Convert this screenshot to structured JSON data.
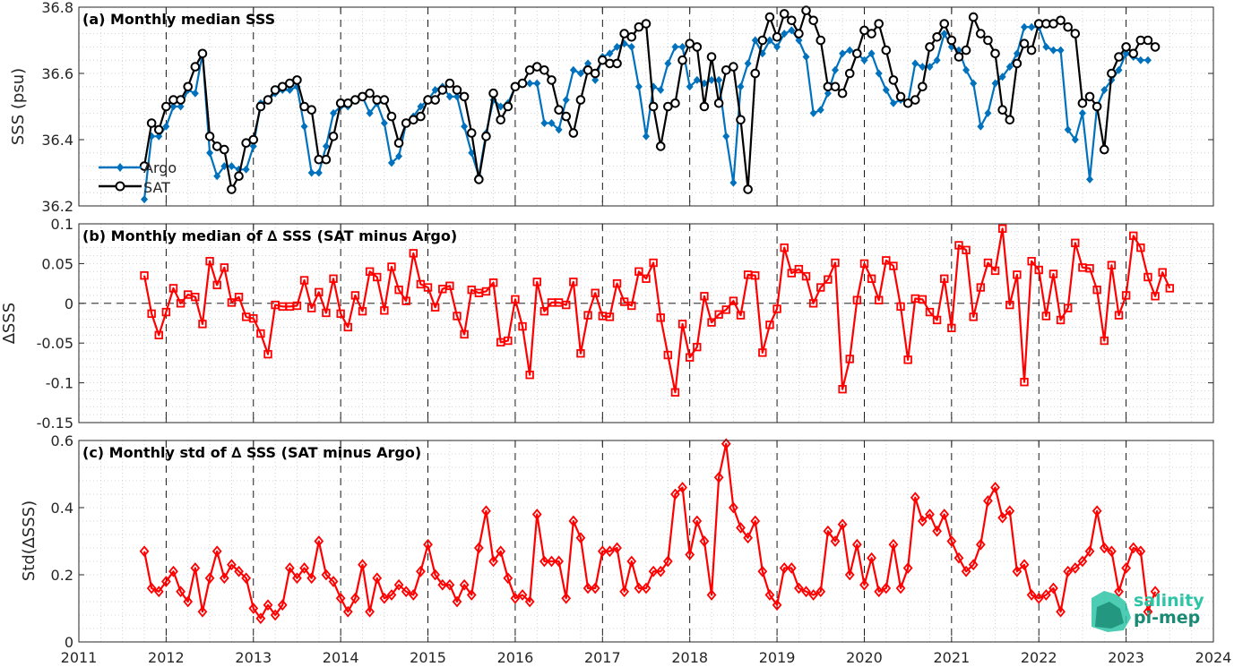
{
  "colors": {
    "argo": "#0072BD",
    "sat": "#000000",
    "delta": "#FF0000",
    "logo_dark": "#1a8a74",
    "logo_light": "#2ec4a6"
  },
  "logo": {
    "line1": "salinity",
    "line2": "pi-mep"
  },
  "chart_data": [
    {
      "type": "line",
      "title": "(a) Monthly median SSS",
      "xlabel": "",
      "ylabel": "SSS (psu)",
      "xlim": [
        2011,
        2024
      ],
      "ylim": [
        36.2,
        36.8
      ],
      "yticks": [
        "36.2",
        "36.4",
        "36.6",
        "36.8"
      ],
      "xticks": [
        "2011",
        "2012",
        "2013",
        "2014",
        "2015",
        "2016",
        "2017",
        "2018",
        "2019",
        "2020",
        "2021",
        "2022",
        "2023",
        "2024"
      ],
      "grid": "minor dotted, yearly dashed",
      "legend_position": "bottom-left",
      "x_start": 2011.75,
      "x_step": 0.0833333,
      "series": [
        {
          "name": "Argo",
          "marker": "diamond",
          "values": [
            36.22,
            36.41,
            36.41,
            36.44,
            36.5,
            36.5,
            36.55,
            36.54,
            36.66,
            36.36,
            36.29,
            36.32,
            36.32,
            36.31,
            36.31,
            36.38,
            36.51,
            36.52,
            36.54,
            36.55,
            36.55,
            36.56,
            36.44,
            36.3,
            36.3,
            36.38,
            36.48,
            36.5,
            36.5,
            36.52,
            36.53,
            36.48,
            36.51,
            36.45,
            36.33,
            36.35,
            36.45,
            36.47,
            36.5,
            36.52,
            36.55,
            36.56,
            36.53,
            36.53,
            36.44,
            36.36,
            36.29,
            36.42,
            36.52,
            36.5,
            36.51,
            36.56,
            36.57,
            36.57,
            36.57,
            36.45,
            36.45,
            36.43,
            36.52,
            36.61,
            36.6,
            36.63,
            36.58,
            36.65,
            36.66,
            36.68,
            36.69,
            36.68,
            36.56,
            36.41,
            36.56,
            36.55,
            36.63,
            36.68,
            36.68,
            36.56,
            36.58,
            36.57,
            36.58,
            36.58,
            36.41,
            36.27,
            36.56,
            36.63,
            36.7,
            36.66,
            36.7,
            36.68,
            36.72,
            36.73,
            36.7,
            36.65,
            36.48,
            36.49,
            36.54,
            36.61,
            36.66,
            36.67,
            36.66,
            36.64,
            36.66,
            36.6,
            36.55,
            36.51,
            36.52,
            36.51,
            36.63,
            36.62,
            36.62,
            36.64,
            36.72,
            36.68,
            36.67,
            36.61,
            36.57,
            36.44,
            36.48,
            36.57,
            36.59,
            36.62,
            36.66,
            36.74,
            36.74,
            36.74,
            36.68,
            36.67,
            36.67,
            36.43,
            36.4,
            36.48,
            36.28,
            36.5,
            36.55,
            36.58,
            36.61,
            36.66,
            36.65,
            36.64,
            36.64
          ]
        },
        {
          "name": "SAT",
          "marker": "circle",
          "values": [
            36.32,
            36.45,
            36.43,
            36.5,
            36.52,
            36.52,
            36.56,
            36.62,
            36.66,
            36.41,
            36.38,
            36.37,
            36.25,
            36.29,
            36.39,
            36.4,
            36.5,
            36.52,
            36.55,
            36.56,
            36.57,
            36.58,
            36.5,
            36.49,
            36.34,
            36.34,
            36.41,
            36.51,
            36.51,
            36.52,
            36.53,
            36.54,
            36.52,
            36.52,
            36.47,
            36.39,
            36.45,
            36.46,
            36.47,
            36.52,
            36.52,
            36.55,
            36.57,
            36.55,
            36.53,
            36.42,
            36.28,
            36.41,
            36.54,
            36.46,
            36.5,
            36.56,
            36.57,
            36.61,
            36.62,
            36.61,
            36.58,
            36.49,
            36.47,
            36.42,
            36.52,
            36.61,
            36.6,
            36.64,
            36.63,
            36.63,
            36.72,
            36.71,
            36.74,
            36.75,
            36.5,
            36.38,
            36.5,
            36.51,
            36.64,
            36.69,
            36.68,
            36.5,
            36.65,
            36.51,
            36.61,
            36.62,
            36.46,
            36.25,
            36.6,
            36.7,
            36.77,
            36.71,
            36.78,
            36.76,
            36.72,
            36.79,
            36.76,
            36.7,
            36.56,
            36.56,
            36.54,
            36.6,
            36.66,
            36.73,
            36.72,
            36.75,
            36.67,
            36.58,
            36.53,
            36.51,
            36.52,
            36.56,
            36.68,
            36.71,
            36.75,
            36.7,
            36.65,
            36.67,
            36.77,
            36.72,
            36.7,
            36.66,
            36.49,
            36.46,
            36.63,
            36.69,
            36.67,
            36.75,
            36.75,
            36.75,
            36.76,
            36.74,
            36.72,
            36.51,
            36.53,
            36.5,
            36.37,
            36.6,
            36.65,
            36.68,
            36.66,
            36.7,
            36.7,
            36.68
          ]
        }
      ]
    },
    {
      "type": "line",
      "title": "(b) Monthly median of ∆ SSS (SAT minus Argo)",
      "xlabel": "",
      "ylabel": "∆SSS",
      "xlim": [
        2011,
        2024
      ],
      "ylim": [
        -0.15,
        0.1
      ],
      "yticks": [
        "-0.15",
        "-0.1",
        "-0.05",
        "0",
        "0.05",
        "0.1"
      ],
      "xticks": [
        "2011",
        "2012",
        "2013",
        "2014",
        "2015",
        "2016",
        "2017",
        "2018",
        "2019",
        "2020",
        "2021",
        "2022",
        "2023",
        "2024"
      ],
      "zero_line": true,
      "marker": "square",
      "x_start": 2011.75,
      "x_step": 0.0833333,
      "values": [
        0.035,
        -0.013,
        -0.04,
        -0.011,
        0.019,
        0.0,
        0.011,
        0.008,
        -0.026,
        0.053,
        0.023,
        0.045,
        0.001,
        0.008,
        -0.017,
        -0.019,
        -0.038,
        -0.064,
        -0.002,
        -0.004,
        -0.004,
        -0.003,
        0.029,
        -0.006,
        0.014,
        -0.012,
        0.031,
        -0.013,
        -0.03,
        0.01,
        -0.01,
        0.04,
        0.033,
        -0.009,
        0.046,
        0.017,
        0.003,
        0.063,
        0.024,
        0.02,
        -0.005,
        0.018,
        0.022,
        -0.016,
        -0.039,
        0.017,
        0.013,
        0.015,
        0.026,
        -0.049,
        -0.047,
        0.005,
        -0.029,
        -0.09,
        0.027,
        -0.01,
        0.001,
        0.001,
        -0.002,
        0.027,
        -0.063,
        -0.015,
        0.013,
        -0.016,
        -0.017,
        0.025,
        0.002,
        -0.003,
        0.04,
        0.031,
        0.051,
        -0.018,
        -0.065,
        -0.112,
        -0.026,
        -0.068,
        -0.055,
        0.009,
        -0.024,
        -0.014,
        -0.008,
        0.003,
        -0.015,
        0.036,
        0.035,
        -0.062,
        -0.027,
        -0.007,
        0.07,
        0.038,
        0.043,
        0.034,
        0.0,
        0.02,
        0.03,
        0.051,
        -0.108,
        -0.07,
        0.004,
        0.05,
        0.031,
        0.004,
        0.054,
        0.047,
        -0.004,
        -0.071,
        0.006,
        0.005,
        -0.011,
        -0.021,
        0.031,
        -0.031,
        0.073,
        0.067,
        -0.017,
        0.02,
        0.051,
        0.041,
        0.094,
        -0.002,
        0.036,
        -0.099,
        0.053,
        0.042,
        -0.016,
        0.037,
        -0.021,
        -0.006,
        0.076,
        0.045,
        0.044,
        0.017,
        -0.047,
        0.048,
        -0.015,
        0.01,
        0.085,
        0.07,
        0.033,
        0.009,
        0.039,
        0.019
      ]
    },
    {
      "type": "line",
      "title": "(c) Monthly std of ∆ SSS (SAT minus Argo)",
      "xlabel": "",
      "ylabel": "Std(∆SSS)",
      "xlim": [
        2011,
        2024
      ],
      "ylim": [
        0,
        0.6
      ],
      "yticks": [
        "0",
        "0.2",
        "0.4",
        "0.6"
      ],
      "xticks": [
        "2011",
        "2012",
        "2013",
        "2014",
        "2015",
        "2016",
        "2017",
        "2018",
        "2019",
        "2020",
        "2021",
        "2022",
        "2023",
        "2024"
      ],
      "marker": "diamond",
      "x_start": 2011.75,
      "x_step": 0.0833333,
      "values": [
        0.27,
        0.16,
        0.15,
        0.18,
        0.21,
        0.15,
        0.12,
        0.22,
        0.09,
        0.19,
        0.27,
        0.19,
        0.23,
        0.21,
        0.19,
        0.1,
        0.07,
        0.11,
        0.08,
        0.11,
        0.22,
        0.19,
        0.22,
        0.19,
        0.3,
        0.2,
        0.18,
        0.13,
        0.09,
        0.13,
        0.23,
        0.09,
        0.19,
        0.13,
        0.14,
        0.17,
        0.15,
        0.14,
        0.21,
        0.29,
        0.2,
        0.17,
        0.17,
        0.12,
        0.17,
        0.14,
        0.28,
        0.39,
        0.24,
        0.27,
        0.19,
        0.13,
        0.14,
        0.12,
        0.38,
        0.24,
        0.24,
        0.24,
        0.13,
        0.36,
        0.31,
        0.16,
        0.16,
        0.27,
        0.27,
        0.28,
        0.15,
        0.24,
        0.16,
        0.16,
        0.21,
        0.21,
        0.24,
        0.44,
        0.46,
        0.26,
        0.36,
        0.3,
        0.14,
        0.49,
        0.59,
        0.4,
        0.34,
        0.31,
        0.36,
        0.21,
        0.14,
        0.11,
        0.22,
        0.22,
        0.16,
        0.15,
        0.14,
        0.15,
        0.33,
        0.3,
        0.35,
        0.2,
        0.29,
        0.17,
        0.25,
        0.15,
        0.16,
        0.29,
        0.16,
        0.22,
        0.43,
        0.36,
        0.38,
        0.33,
        0.38,
        0.3,
        0.25,
        0.21,
        0.23,
        0.29,
        0.42,
        0.46,
        0.37,
        0.39,
        0.21,
        0.23,
        0.14,
        0.13,
        0.14,
        0.16,
        0.09,
        0.21,
        0.22,
        0.24,
        0.27,
        0.39,
        0.28,
        0.27,
        0.15,
        0.22,
        0.28,
        0.27,
        0.09,
        0.15
      ]
    }
  ]
}
